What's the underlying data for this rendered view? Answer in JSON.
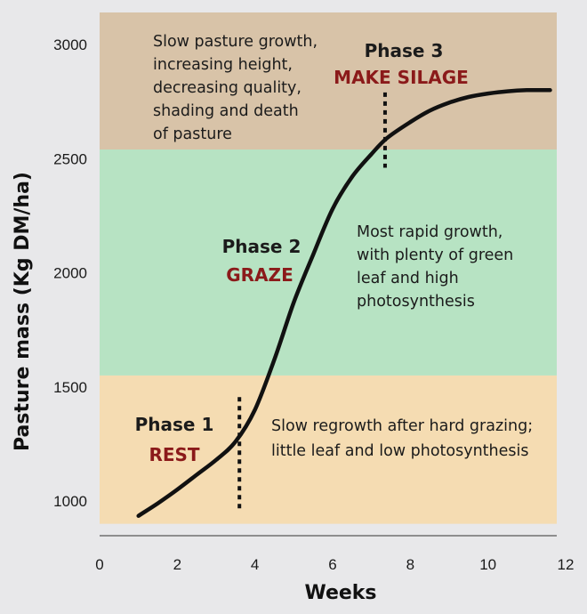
{
  "chart_data": {
    "type": "line",
    "title": "",
    "xlabel": "Weeks",
    "ylabel": "Pasture mass (Kg DM/ha)",
    "xlim": [
      0,
      12
    ],
    "ylim": [
      900,
      3150
    ],
    "x_ticks": [
      {
        "value": 0,
        "label": "0"
      },
      {
        "value": 2,
        "label": "2"
      },
      {
        "value": 4,
        "label": "4"
      },
      {
        "value": 6,
        "label": "6"
      },
      {
        "value": 8,
        "label": "8"
      },
      {
        "value": 10,
        "label": "10"
      },
      {
        "value": 12,
        "label": "12"
      }
    ],
    "y_ticks": [
      {
        "value": 1000,
        "label": "1000"
      },
      {
        "value": 1500,
        "label": "1500"
      },
      {
        "value": 2000,
        "label": "2000"
      },
      {
        "value": 2500,
        "label": "2500"
      },
      {
        "value": 3000,
        "label": "3000"
      }
    ],
    "bands": [
      {
        "phase": "Phase 1",
        "from": 900,
        "to": 1550,
        "color": "#f5dcb2"
      },
      {
        "phase": "Phase 2",
        "from": 1550,
        "to": 2540,
        "color": "#b7e3c3"
      },
      {
        "phase": "Phase 3",
        "from": 2540,
        "to": 3150,
        "color": "#d8c3a8"
      }
    ],
    "series": [
      {
        "color": "#111111",
        "x": [
          1.0,
          1.5,
          2.0,
          2.5,
          3.0,
          3.5,
          4.0,
          4.5,
          5.0,
          5.5,
          6.0,
          6.5,
          7.0,
          7.4,
          8.0,
          8.5,
          9.0,
          9.5,
          10.0,
          10.5,
          11.0,
          11.6
        ],
        "y": [
          935,
          990,
          1050,
          1115,
          1180,
          1260,
          1400,
          1620,
          1870,
          2080,
          2280,
          2420,
          2520,
          2590,
          2660,
          2710,
          2745,
          2770,
          2785,
          2795,
          2800,
          2800
        ]
      }
    ],
    "markers": [
      {
        "x": 3.6,
        "y_from": 950,
        "y_to": 1455
      },
      {
        "x": 7.35,
        "y_from": 2460,
        "y_to": 2790
      }
    ],
    "annotations": {
      "phase1_title": "Phase 1",
      "phase1_action": "REST",
      "phase2_title": "Phase 2",
      "phase2_action": "GRAZE",
      "phase3_title": "Phase 3",
      "phase3_action": "MAKE SILAGE",
      "phase1_note": [
        "Slow regrowth after hard grazing;",
        "little leaf and low photosynthesis"
      ],
      "phase2_note": [
        "Most rapid growth,",
        "with plenty of green",
        "leaf and high",
        "photosynthesis"
      ],
      "phase3_note": [
        "Slow pasture growth,",
        "increasing height,",
        "decreasing quality,",
        "shading and death",
        "of pasture"
      ]
    },
    "grid": false,
    "legend": "none"
  }
}
